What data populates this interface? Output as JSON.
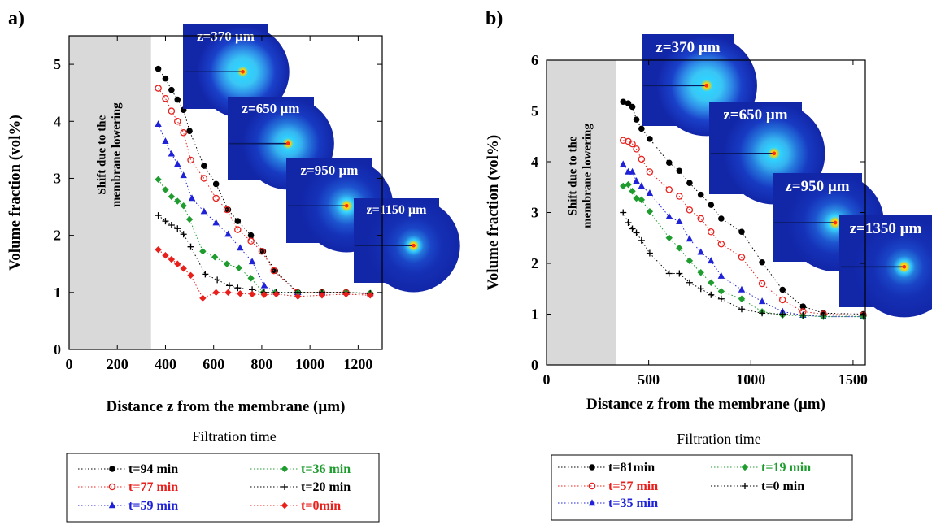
{
  "chart_data": [
    {
      "panel_label": "a)",
      "type": "scatter",
      "xlabel": "Distance z from the membrane (µm)",
      "ylabel": "Volume fraction (vol%)",
      "xlim": [
        0,
        1300
      ],
      "ylim": [
        0,
        5.5
      ],
      "xticks": [
        0,
        200,
        400,
        600,
        800,
        1000,
        1200
      ],
      "yticks": [
        0,
        1,
        2,
        3,
        4,
        5
      ],
      "shaded_region": {
        "x0": 0,
        "x1": 340,
        "label_line1": "Shift due to the",
        "label_line2": "membrane lowering"
      },
      "legend_title": "Filtration time",
      "insets": [
        {
          "label": "z=370 µm",
          "ring": "strong"
        },
        {
          "label": "z=650 µm",
          "ring": "medium"
        },
        {
          "label": "z=950 µm",
          "ring": "weak"
        },
        {
          "label": "z=1150 µm",
          "ring": "faint"
        }
      ],
      "series": [
        {
          "name": "t=94 min",
          "color": "#000000",
          "marker": "circle",
          "points": [
            [
              370,
              4.92
            ],
            [
              400,
              4.75
            ],
            [
              425,
              4.55
            ],
            [
              450,
              4.38
            ],
            [
              475,
              4.2
            ],
            [
              500,
              3.83
            ],
            [
              560,
              3.22
            ],
            [
              610,
              2.9
            ],
            [
              660,
              2.45
            ],
            [
              700,
              2.25
            ],
            [
              755,
              2.0
            ],
            [
              805,
              1.72
            ],
            [
              855,
              1.38
            ],
            [
              950,
              1.0
            ],
            [
              1050,
              1.0
            ],
            [
              1150,
              1.0
            ],
            [
              1250,
              0.98
            ]
          ]
        },
        {
          "name": "t=77 min",
          "color": "#e8201c",
          "marker": "circle-open",
          "points": [
            [
              370,
              4.58
            ],
            [
              400,
              4.4
            ],
            [
              425,
              4.18
            ],
            [
              450,
              4.0
            ],
            [
              475,
              3.8
            ],
            [
              505,
              3.32
            ],
            [
              560,
              3.0
            ],
            [
              610,
              2.65
            ],
            [
              655,
              2.45
            ],
            [
              700,
              2.1
            ],
            [
              755,
              1.9
            ],
            [
              800,
              1.72
            ],
            [
              850,
              1.38
            ],
            [
              945,
              1.0
            ],
            [
              1050,
              1.0
            ],
            [
              1150,
              1.0
            ],
            [
              1250,
              0.97
            ]
          ]
        },
        {
          "name": "t=59 min",
          "color": "#1f22d6",
          "marker": "triangle",
          "points": [
            [
              370,
              3.95
            ],
            [
              400,
              3.65
            ],
            [
              425,
              3.43
            ],
            [
              450,
              3.25
            ],
            [
              475,
              3.05
            ],
            [
              510,
              2.65
            ],
            [
              560,
              2.42
            ],
            [
              610,
              2.22
            ],
            [
              660,
              2.02
            ],
            [
              710,
              1.78
            ],
            [
              760,
              1.54
            ],
            [
              810,
              1.12
            ],
            [
              860,
              1.0
            ],
            [
              950,
              1.0
            ],
            [
              1050,
              1.0
            ],
            [
              1150,
              1.0
            ],
            [
              1250,
              0.98
            ]
          ]
        },
        {
          "name": "t=36 min",
          "color": "#1e9c2e",
          "marker": "diamond",
          "points": [
            [
              370,
              2.98
            ],
            [
              400,
              2.8
            ],
            [
              425,
              2.68
            ],
            [
              450,
              2.6
            ],
            [
              475,
              2.52
            ],
            [
              500,
              2.28
            ],
            [
              555,
              1.72
            ],
            [
              605,
              1.62
            ],
            [
              655,
              1.5
            ],
            [
              705,
              1.43
            ],
            [
              755,
              1.25
            ],
            [
              805,
              1.0
            ],
            [
              855,
              1.0
            ],
            [
              950,
              1.0
            ],
            [
              1050,
              1.0
            ],
            [
              1150,
              1.0
            ],
            [
              1250,
              0.99
            ]
          ]
        },
        {
          "name": "t=20 min",
          "color": "#000000",
          "marker": "plus",
          "points": [
            [
              370,
              2.35
            ],
            [
              400,
              2.25
            ],
            [
              425,
              2.18
            ],
            [
              450,
              2.12
            ],
            [
              475,
              2.02
            ],
            [
              505,
              1.8
            ],
            [
              565,
              1.32
            ],
            [
              615,
              1.22
            ],
            [
              665,
              1.12
            ],
            [
              700,
              1.08
            ],
            [
              760,
              1.05
            ],
            [
              810,
              1.0
            ],
            [
              860,
              1.0
            ],
            [
              950,
              1.0
            ],
            [
              1050,
              1.0
            ],
            [
              1150,
              1.0
            ],
            [
              1250,
              0.98
            ]
          ]
        },
        {
          "name": "t=0min",
          "color": "#e8201c",
          "marker": "diamond",
          "points": [
            [
              370,
              1.75
            ],
            [
              400,
              1.65
            ],
            [
              425,
              1.58
            ],
            [
              450,
              1.5
            ],
            [
              475,
              1.42
            ],
            [
              505,
              1.3
            ],
            [
              555,
              0.9
            ],
            [
              610,
              1.0
            ],
            [
              660,
              1.0
            ],
            [
              710,
              0.98
            ],
            [
              760,
              0.97
            ],
            [
              810,
              0.96
            ],
            [
              860,
              0.97
            ],
            [
              950,
              0.93
            ],
            [
              1050,
              0.95
            ],
            [
              1150,
              0.97
            ],
            [
              1250,
              0.95
            ]
          ]
        }
      ]
    },
    {
      "panel_label": "b)",
      "type": "scatter",
      "xlabel": "Distance z from the membrane (µm)",
      "ylabel": "Volume fraction (vol%)",
      "xlim": [
        0,
        1560
      ],
      "ylim": [
        0,
        6
      ],
      "xticks": [
        0,
        500,
        1000,
        1500
      ],
      "yticks": [
        0,
        1,
        2,
        3,
        4,
        5,
        6
      ],
      "shaded_region": {
        "x0": 0,
        "x1": 340,
        "label_line1": "Shift due to the",
        "label_line2": "membrane lowering"
      },
      "legend_title": "Filtration time",
      "insets": [
        {
          "label": "z=370 µm",
          "ring": "strong"
        },
        {
          "label": "z=650 µm",
          "ring": "medium"
        },
        {
          "label": "z=950 µm",
          "ring": "weak"
        },
        {
          "label": "z=1350 µm",
          "ring": "faint"
        }
      ],
      "series": [
        {
          "name": "t=81min",
          "color": "#000000",
          "marker": "circle",
          "points": [
            [
              375,
              5.18
            ],
            [
              400,
              5.15
            ],
            [
              420,
              5.08
            ],
            [
              440,
              4.83
            ],
            [
              465,
              4.65
            ],
            [
              505,
              4.45
            ],
            [
              600,
              3.98
            ],
            [
              650,
              3.82
            ],
            [
              700,
              3.58
            ],
            [
              755,
              3.35
            ],
            [
              805,
              3.15
            ],
            [
              855,
              2.88
            ],
            [
              955,
              2.62
            ],
            [
              1055,
              2.02
            ],
            [
              1155,
              1.48
            ],
            [
              1255,
              1.15
            ],
            [
              1355,
              1.02
            ],
            [
              1550,
              1.0
            ]
          ]
        },
        {
          "name": "t=57 min",
          "color": "#e8201c",
          "marker": "circle-open",
          "points": [
            [
              375,
              4.42
            ],
            [
              400,
              4.4
            ],
            [
              420,
              4.35
            ],
            [
              440,
              4.25
            ],
            [
              465,
              4.05
            ],
            [
              505,
              3.8
            ],
            [
              600,
              3.45
            ],
            [
              650,
              3.32
            ],
            [
              700,
              3.05
            ],
            [
              755,
              2.88
            ],
            [
              805,
              2.62
            ],
            [
              855,
              2.38
            ],
            [
              955,
              2.12
            ],
            [
              1055,
              1.6
            ],
            [
              1155,
              1.28
            ],
            [
              1255,
              1.05
            ],
            [
              1355,
              1.0
            ],
            [
              1550,
              0.98
            ]
          ]
        },
        {
          "name": "t=35 min",
          "color": "#1f22d6",
          "marker": "triangle",
          "points": [
            [
              375,
              3.95
            ],
            [
              400,
              3.8
            ],
            [
              420,
              3.8
            ],
            [
              440,
              3.62
            ],
            [
              465,
              3.52
            ],
            [
              505,
              3.38
            ],
            [
              600,
              2.92
            ],
            [
              650,
              2.82
            ],
            [
              700,
              2.48
            ],
            [
              755,
              2.22
            ],
            [
              805,
              2.05
            ],
            [
              855,
              1.75
            ],
            [
              955,
              1.48
            ],
            [
              1055,
              1.25
            ],
            [
              1155,
              1.05
            ],
            [
              1255,
              0.98
            ],
            [
              1355,
              0.95
            ],
            [
              1550,
              0.95
            ]
          ]
        },
        {
          "name": "t=19 min",
          "color": "#1e9c2e",
          "marker": "diamond",
          "points": [
            [
              375,
              3.52
            ],
            [
              400,
              3.55
            ],
            [
              420,
              3.42
            ],
            [
              440,
              3.28
            ],
            [
              465,
              3.25
            ],
            [
              505,
              3.02
            ],
            [
              600,
              2.5
            ],
            [
              650,
              2.3
            ],
            [
              700,
              2.05
            ],
            [
              755,
              1.82
            ],
            [
              805,
              1.62
            ],
            [
              855,
              1.45
            ],
            [
              955,
              1.3
            ],
            [
              1055,
              1.05
            ],
            [
              1155,
              0.98
            ],
            [
              1255,
              0.97
            ],
            [
              1355,
              0.95
            ],
            [
              1550,
              0.95
            ]
          ]
        },
        {
          "name": "t=0 min",
          "color": "#000000",
          "marker": "plus",
          "points": [
            [
              375,
              3.0
            ],
            [
              400,
              2.8
            ],
            [
              420,
              2.68
            ],
            [
              440,
              2.6
            ],
            [
              465,
              2.45
            ],
            [
              505,
              2.2
            ],
            [
              600,
              1.8
            ],
            [
              650,
              1.8
            ],
            [
              700,
              1.62
            ],
            [
              755,
              1.5
            ],
            [
              805,
              1.38
            ],
            [
              855,
              1.3
            ],
            [
              955,
              1.1
            ],
            [
              1055,
              1.02
            ],
            [
              1155,
              1.0
            ],
            [
              1255,
              0.98
            ],
            [
              1355,
              0.98
            ],
            [
              1550,
              0.98
            ]
          ]
        }
      ]
    }
  ]
}
